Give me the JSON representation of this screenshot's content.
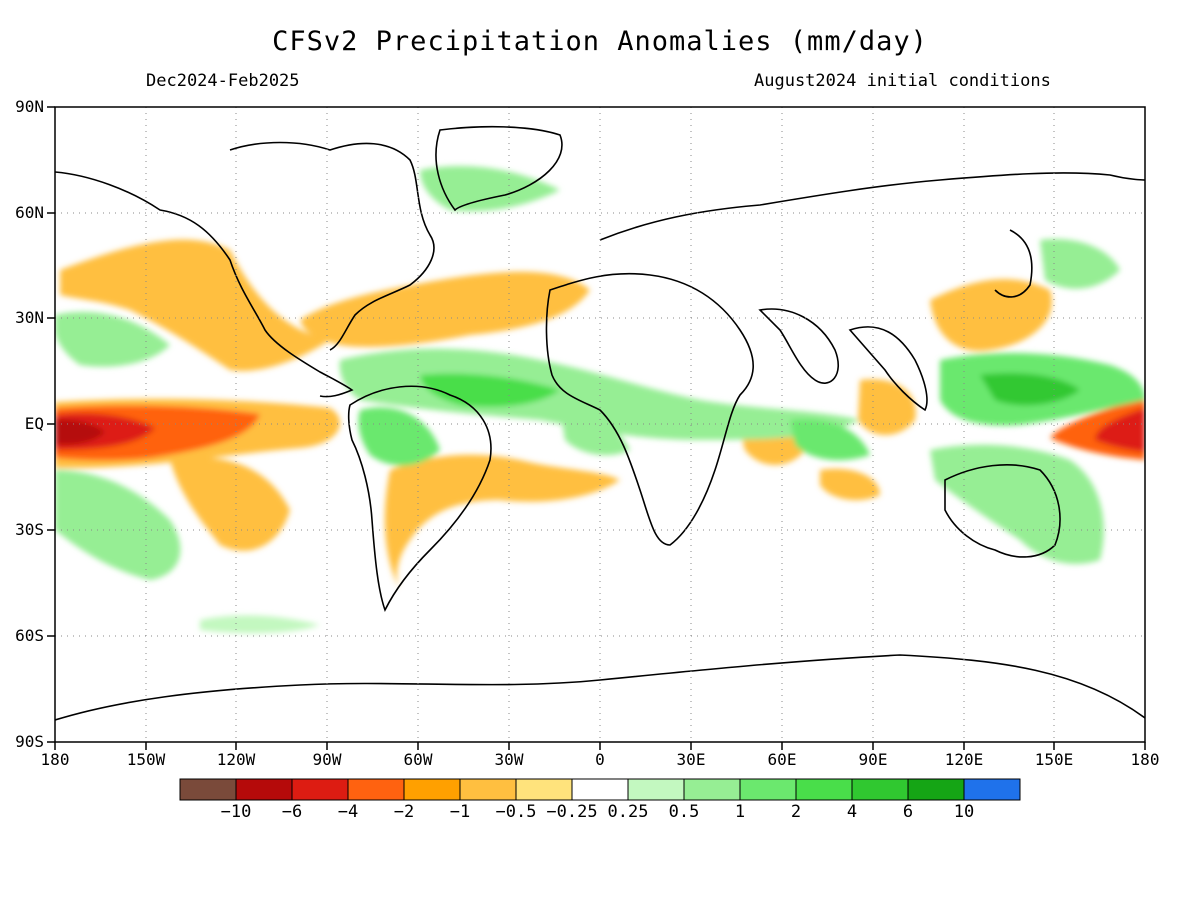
{
  "title": "CFSv2 Precipitation Anomalies (mm/day)",
  "period": "Dec2024-Feb2025",
  "init": "August2024 initial conditions",
  "lat_labels": [
    "90N",
    "60N",
    "30N",
    "EQ",
    "30S",
    "60S",
    "90S"
  ],
  "lon_labels": [
    "180",
    "150W",
    "120W",
    "90W",
    "60W",
    "30W",
    "0",
    "30E",
    "60E",
    "90E",
    "120E",
    "150E",
    "180"
  ],
  "colorbar": {
    "colors": [
      "#7a4a3a",
      "#b50a0a",
      "#dd1c12",
      "#ff6210",
      "#ffa000",
      "#ffbf40",
      "#ffe37c",
      "#ffffff",
      "#c3f8c0",
      "#96ee94",
      "#6be86e",
      "#49de4a",
      "#30c830",
      "#15a515",
      "#1f72eb"
    ],
    "labels": [
      "−10",
      "−6",
      "−4",
      "−2",
      "−1",
      "−0.5",
      "−0.25",
      "0.25",
      "0.5",
      "1",
      "2",
      "4",
      "6",
      "10"
    ]
  }
}
